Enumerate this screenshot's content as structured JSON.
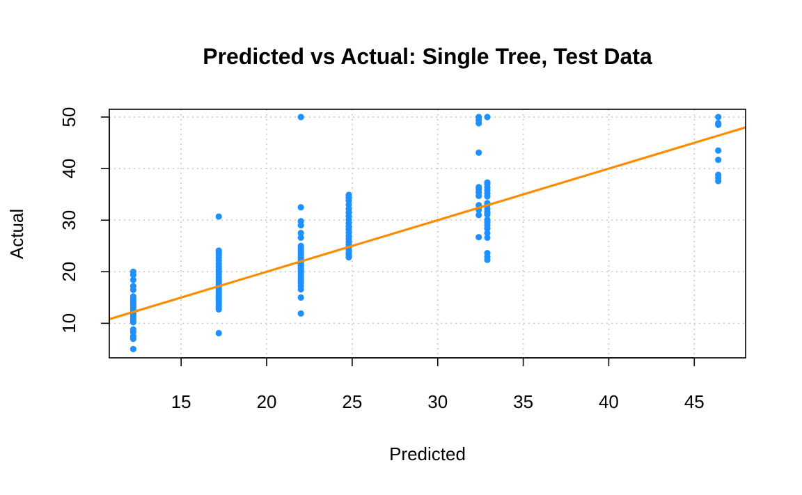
{
  "chart_data": {
    "type": "scatter",
    "title": "Predicted vs Actual: Single Tree, Test Data",
    "xlabel": "Predicted",
    "ylabel": "Actual",
    "xlim": [
      10.8,
      48.0
    ],
    "ylim": [
      3.3,
      51.5
    ],
    "xticks": [
      15,
      20,
      25,
      30,
      35,
      40,
      45
    ],
    "yticks": [
      10,
      20,
      30,
      40,
      50
    ],
    "grid": true,
    "point_color": "#1E90FF",
    "line_color": "#FF8C00",
    "reference_line": {
      "intercept": 0,
      "slope": 1
    },
    "series": [
      {
        "points": [
          [
            12.2,
            5.0
          ],
          [
            12.2,
            7.0
          ],
          [
            12.2,
            7.5
          ],
          [
            12.2,
            8.3
          ],
          [
            12.2,
            8.8
          ],
          [
            12.2,
            10.2
          ],
          [
            12.2,
            10.5
          ],
          [
            12.2,
            11.0
          ],
          [
            12.2,
            11.5
          ],
          [
            12.2,
            11.9
          ],
          [
            12.2,
            12.3
          ],
          [
            12.2,
            12.7
          ],
          [
            12.2,
            13.1
          ],
          [
            12.2,
            13.4
          ],
          [
            12.2,
            13.8
          ],
          [
            12.2,
            14.1
          ],
          [
            12.2,
            14.4
          ],
          [
            12.2,
            14.8
          ],
          [
            12.2,
            15.2
          ],
          [
            12.2,
            16.5
          ],
          [
            12.2,
            17.2
          ],
          [
            12.2,
            18.4
          ],
          [
            12.2,
            19.4
          ],
          [
            12.2,
            20.0
          ],
          [
            17.2,
            8.1
          ],
          [
            17.2,
            12.7
          ],
          [
            17.2,
            13.1
          ],
          [
            17.2,
            13.5
          ],
          [
            17.2,
            13.9
          ],
          [
            17.2,
            14.3
          ],
          [
            17.2,
            14.6
          ],
          [
            17.2,
            15.0
          ],
          [
            17.2,
            15.4
          ],
          [
            17.2,
            15.8
          ],
          [
            17.2,
            16.2
          ],
          [
            17.2,
            16.6
          ],
          [
            17.2,
            17.1
          ],
          [
            17.2,
            17.5
          ],
          [
            17.2,
            18.0
          ],
          [
            17.2,
            18.5
          ],
          [
            17.2,
            19.0
          ],
          [
            17.2,
            19.5
          ],
          [
            17.2,
            20.0
          ],
          [
            17.2,
            20.5
          ],
          [
            17.2,
            21.0
          ],
          [
            17.2,
            21.6
          ],
          [
            17.2,
            22.2
          ],
          [
            17.2,
            22.8
          ],
          [
            17.2,
            23.3
          ],
          [
            17.2,
            23.7
          ],
          [
            17.2,
            24.1
          ],
          [
            17.2,
            30.7
          ],
          [
            22.0,
            11.9
          ],
          [
            22.0,
            15.0
          ],
          [
            22.0,
            16.6
          ],
          [
            22.0,
            17.2
          ],
          [
            22.0,
            17.8
          ],
          [
            22.0,
            18.3
          ],
          [
            22.0,
            18.7
          ],
          [
            22.0,
            19.1
          ],
          [
            22.0,
            19.5
          ],
          [
            22.0,
            19.9
          ],
          [
            22.0,
            20.3
          ],
          [
            22.0,
            20.7
          ],
          [
            22.0,
            21.1
          ],
          [
            22.0,
            21.5
          ],
          [
            22.0,
            21.9
          ],
          [
            22.0,
            22.3
          ],
          [
            22.0,
            22.7
          ],
          [
            22.0,
            23.1
          ],
          [
            22.0,
            23.5
          ],
          [
            22.0,
            23.9
          ],
          [
            22.0,
            24.3
          ],
          [
            22.0,
            24.7
          ],
          [
            22.0,
            25.0
          ],
          [
            22.0,
            26.6
          ],
          [
            22.0,
            27.5
          ],
          [
            22.0,
            29.0
          ],
          [
            22.0,
            29.8
          ],
          [
            22.0,
            32.5
          ],
          [
            22.0,
            50.0
          ],
          [
            24.8,
            22.8
          ],
          [
            24.8,
            23.3
          ],
          [
            24.8,
            23.7
          ],
          [
            24.8,
            24.3
          ],
          [
            24.8,
            24.8
          ],
          [
            24.8,
            25.3
          ],
          [
            24.8,
            25.8
          ],
          [
            24.8,
            26.4
          ],
          [
            24.8,
            27.0
          ],
          [
            24.8,
            27.6
          ],
          [
            24.8,
            28.2
          ],
          [
            24.8,
            28.8
          ],
          [
            24.8,
            29.4
          ],
          [
            24.8,
            30.1
          ],
          [
            24.8,
            30.8
          ],
          [
            24.8,
            31.5
          ],
          [
            24.8,
            32.2
          ],
          [
            24.8,
            33.0
          ],
          [
            24.8,
            33.8
          ],
          [
            24.8,
            34.4
          ],
          [
            24.8,
            34.9
          ],
          [
            32.4,
            26.7
          ],
          [
            32.4,
            31.0
          ],
          [
            32.4,
            32.0
          ],
          [
            32.4,
            32.9
          ],
          [
            32.4,
            34.7
          ],
          [
            32.4,
            35.4
          ],
          [
            32.4,
            36.0
          ],
          [
            32.4,
            36.4
          ],
          [
            32.4,
            43.1
          ],
          [
            32.4,
            48.8
          ],
          [
            32.4,
            49.4
          ],
          [
            32.4,
            50.0
          ],
          [
            32.9,
            22.3
          ],
          [
            32.9,
            22.9
          ],
          [
            32.9,
            23.6
          ],
          [
            32.9,
            26.6
          ],
          [
            32.9,
            27.5
          ],
          [
            32.9,
            28.4
          ],
          [
            32.9,
            29.0
          ],
          [
            32.9,
            29.6
          ],
          [
            32.9,
            30.1
          ],
          [
            32.9,
            31.1
          ],
          [
            32.9,
            31.6
          ],
          [
            32.9,
            32.2
          ],
          [
            32.9,
            32.9
          ],
          [
            32.9,
            33.3
          ],
          [
            32.9,
            34.6
          ],
          [
            32.9,
            35.2
          ],
          [
            32.9,
            35.8
          ],
          [
            32.9,
            36.4
          ],
          [
            32.9,
            37.0
          ],
          [
            32.9,
            37.3
          ],
          [
            32.9,
            50.0
          ],
          [
            46.4,
            37.6
          ],
          [
            46.4,
            38.2
          ],
          [
            46.4,
            38.8
          ],
          [
            46.4,
            41.7
          ],
          [
            46.4,
            43.5
          ],
          [
            46.4,
            48.5
          ],
          [
            46.4,
            48.8
          ],
          [
            46.4,
            50.0
          ]
        ]
      }
    ]
  }
}
